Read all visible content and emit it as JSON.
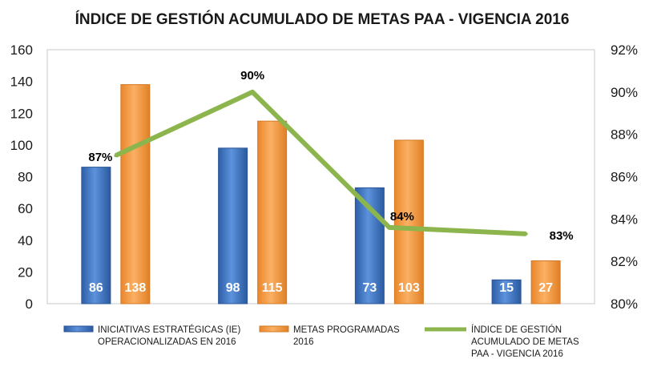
{
  "chart_data": {
    "type": "bar",
    "title": "ÍNDICE DE GESTIÓN ACUMULADO DE METAS PAA - VIGENCIA 2016",
    "categories": [
      "",
      "",
      "",
      ""
    ],
    "series": [
      {
        "name": "INICIATIVAS ESTRATÉGICAS (IE) OPERACIONALIZADAS EN 2016",
        "legend_lines": [
          "INICIATIVAS ESTRATÉGICAS (IE)",
          "OPERACIONALIZADAS EN 2016"
        ],
        "type": "bar",
        "axis": "left",
        "color": "#4a7fc9",
        "values": [
          86,
          98,
          73,
          15
        ]
      },
      {
        "name": "METAS PROGRAMADAS 2016",
        "legend_lines": [
          "METAS PROGRAMADAS",
          "2016"
        ],
        "type": "bar",
        "axis": "left",
        "color": "#f7a04a",
        "values": [
          138,
          115,
          103,
          27
        ]
      },
      {
        "name": "ÍNDICE DE GESTIÓN ACUMULADO DE METAS PAA - VIGENCIA 2016",
        "legend_lines": [
          "ÍNDICE DE GESTIÓN",
          "ACUMULADO  DE METAS",
          "PAA - VIGENCIA 2016"
        ],
        "type": "line",
        "axis": "right",
        "color": "#8db54d",
        "values": [
          0.87,
          0.9,
          0.836,
          0.833
        ],
        "labels": [
          "87%",
          "90%",
          "84%",
          "83%"
        ]
      }
    ],
    "ylim": [
      0,
      160
    ],
    "y_ticks": [
      "0",
      "20",
      "40",
      "60",
      "80",
      "100",
      "120",
      "140",
      "160"
    ],
    "y2lim": [
      0.8,
      0.92
    ],
    "y2_ticks": [
      "80%",
      "82%",
      "84%",
      "86%",
      "88%",
      "90%",
      "92%"
    ],
    "grid": false,
    "legend_position": "bottom"
  }
}
